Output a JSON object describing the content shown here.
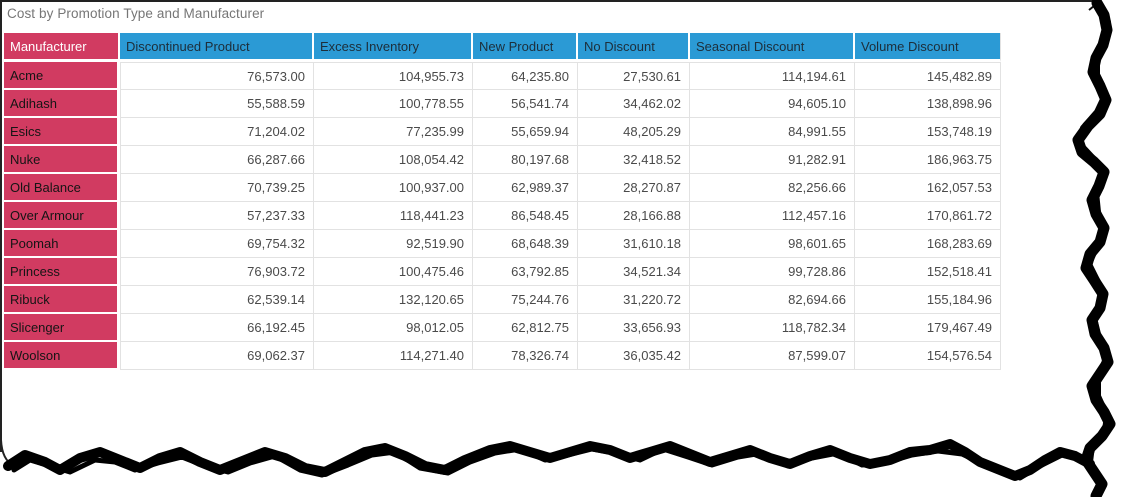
{
  "title": "Cost by Promotion Type and Manufacturer",
  "chart_data": {
    "type": "table",
    "corner_label": "Manufacturer",
    "columns": [
      "Discontinued Product",
      "Excess Inventory",
      "New Product",
      "No Discount",
      "Seasonal Discount",
      "Volume Discount"
    ],
    "rows": [
      {
        "manufacturer": "Acme",
        "values": [
          "76,573.00",
          "104,955.73",
          "64,235.80",
          "27,530.61",
          "114,194.61",
          "145,482.89"
        ]
      },
      {
        "manufacturer": "Adihash",
        "values": [
          "55,588.59",
          "100,778.55",
          "56,541.74",
          "34,462.02",
          "94,605.10",
          "138,898.96"
        ]
      },
      {
        "manufacturer": "Esics",
        "values": [
          "71,204.02",
          "77,235.99",
          "55,659.94",
          "48,205.29",
          "84,991.55",
          "153,748.19"
        ]
      },
      {
        "manufacturer": "Nuke",
        "values": [
          "66,287.66",
          "108,054.42",
          "80,197.68",
          "32,418.52",
          "91,282.91",
          "186,963.75"
        ]
      },
      {
        "manufacturer": "Old Balance",
        "values": [
          "70,739.25",
          "100,937.00",
          "62,989.37",
          "28,270.87",
          "82,256.66",
          "162,057.53"
        ]
      },
      {
        "manufacturer": "Over Armour",
        "values": [
          "57,237.33",
          "118,441.23",
          "86,548.45",
          "28,166.88",
          "112,457.16",
          "170,861.72"
        ]
      },
      {
        "manufacturer": "Poomah",
        "values": [
          "69,754.32",
          "92,519.90",
          "68,648.39",
          "31,610.18",
          "98,601.65",
          "168,283.69"
        ]
      },
      {
        "manufacturer": "Princess",
        "values": [
          "76,903.72",
          "100,475.46",
          "63,792.85",
          "34,521.34",
          "99,728.86",
          "152,518.41"
        ]
      },
      {
        "manufacturer": "Ribuck",
        "values": [
          "62,539.14",
          "132,120.65",
          "75,244.76",
          "31,220.72",
          "82,694.66",
          "155,184.96"
        ]
      },
      {
        "manufacturer": "Slicenger",
        "values": [
          "66,192.45",
          "98,012.05",
          "62,812.75",
          "33,656.93",
          "118,782.34",
          "179,467.49"
        ]
      },
      {
        "manufacturer": "Woolson",
        "values": [
          "69,062.37",
          "114,271.40",
          "78,326.74",
          "36,035.42",
          "87,599.07",
          "154,576.54"
        ]
      }
    ]
  },
  "colors": {
    "column_header_bg": "#2b9ad5",
    "row_header_bg": "#d13b61",
    "column_header_text": "#1d2e3a",
    "corner_header_text": "#ffffff",
    "row_label_text": "#151515",
    "value_text": "#4a4a4a",
    "title_text": "#767676",
    "grid_line": "#e2e2e2",
    "torn_edge": "#000000",
    "background": "#ffffff"
  }
}
